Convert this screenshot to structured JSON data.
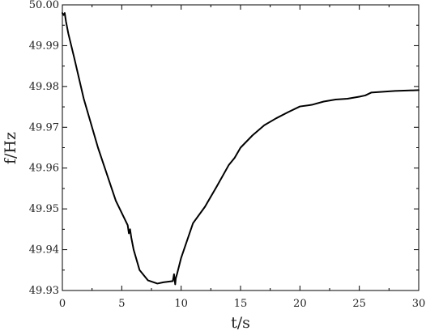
{
  "chart_data": {
    "type": "line",
    "title": "",
    "xlabel": "t/s",
    "ylabel": "f/Hz",
    "xlim": [
      0,
      30
    ],
    "ylim": [
      49.93,
      50.0
    ],
    "grid": false,
    "x_ticks": [
      0,
      5,
      10,
      15,
      20,
      25,
      30
    ],
    "x_tick_labels": [
      "0",
      "5",
      "10",
      "15",
      "20",
      "25",
      "30"
    ],
    "y_ticks": [
      49.93,
      49.94,
      49.95,
      49.96,
      49.97,
      49.98,
      49.99,
      50.0
    ],
    "y_tick_labels": [
      "49.93",
      "49.94",
      "49.95",
      "49.96",
      "49.97",
      "49.98",
      "49.99",
      "50.00"
    ],
    "series": [
      {
        "color": "#000000",
        "x": [
          0,
          0.1,
          0.2,
          0.3,
          0.5,
          1.0,
          1.8,
          3.0,
          4.5,
          5.5,
          5.6,
          5.7,
          5.8,
          6.0,
          6.5,
          7.2,
          8.0,
          8.5,
          9.3,
          9.4,
          9.5,
          9.55,
          9.65,
          10.0,
          11.0,
          12.0,
          13.0,
          14.0,
          14.5,
          15.0,
          16.0,
          17.0,
          18.0,
          19.0,
          20.0,
          21.0,
          22.0,
          23.0,
          24.0,
          25.0,
          25.5,
          26.0,
          27.0,
          28.0,
          29.0,
          30.0
        ],
        "y": [
          49.998,
          49.9975,
          49.998,
          49.996,
          49.993,
          49.987,
          49.977,
          49.965,
          49.952,
          49.946,
          49.944,
          49.945,
          49.943,
          49.94,
          49.935,
          49.9325,
          49.9317,
          49.932,
          49.9323,
          49.934,
          49.9315,
          49.933,
          49.934,
          49.938,
          49.9465,
          49.9505,
          49.9555,
          49.9607,
          49.9625,
          49.965,
          49.968,
          49.9705,
          49.9722,
          49.9737,
          49.9751,
          49.9755,
          49.9763,
          49.9768,
          49.977,
          49.9775,
          49.9778,
          49.9785,
          49.9787,
          49.9789,
          49.979,
          49.9791
        ]
      }
    ]
  }
}
